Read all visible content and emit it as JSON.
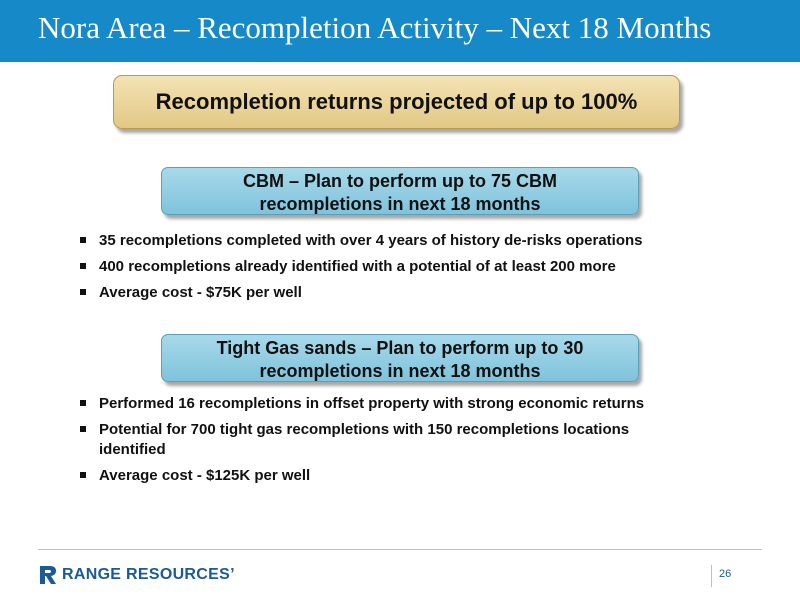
{
  "slide": {
    "title": "Nora Area – Recompletion Activity – Next 18 Months",
    "callout": "Recompletion returns projected of up to 100%",
    "sections": [
      {
        "header_lines": [
          "CBM – Plan to perform up to 75 CBM",
          "recompletions in next 18 months"
        ],
        "bullets": [
          "35 recompletions completed with over 4 years of history de-risks operations",
          "400 recompletions already identified with a potential of at least 200 more",
          "Average cost - $75K per well"
        ]
      },
      {
        "header_lines": [
          "Tight Gas sands – Plan to perform up to 30",
          "recompletions in next 18 months"
        ],
        "bullets": [
          "Performed 16 recompletions in offset property with strong economic returns",
          "Potential for 700 tight gas recompletions with 150 recompletions locations identified",
          "Average cost - $125K per well"
        ]
      }
    ]
  },
  "footer": {
    "logo_text": "RANGE RESOURCES’",
    "page_number": "26"
  },
  "colors": {
    "title_bar": "#1689c9",
    "callout_fill": "#e9d39a",
    "plan_box_fill": "#8fcde3",
    "brand_blue": "#1b5a96"
  }
}
